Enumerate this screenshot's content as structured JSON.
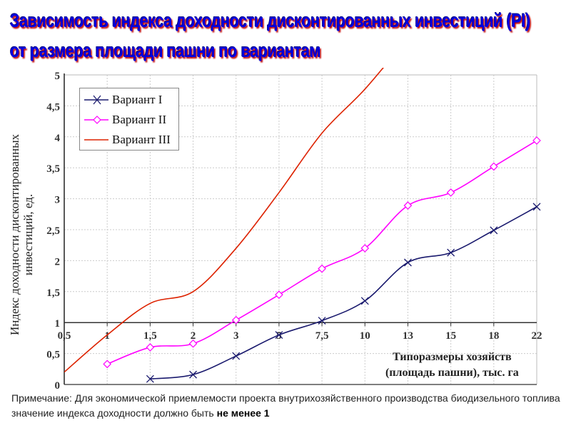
{
  "title": {
    "line1": "Зависимость индекса доходности дисконтированных инвестиций (PI)",
    "line2": "от размера площади пашни по вариантам"
  },
  "note": {
    "text": "Примечание: Для экономической приемлемости проекта внутрихозяйственного производства биодизельного топлива значение индекса доходности должно быть",
    "bold": "не менее 1"
  },
  "chart_data": {
    "type": "line",
    "title": "Зависимость индекса доходности дисконтированных инвестиций (PI) от размера площади пашни по вариантам",
    "ylabel": "Индекс доходности дисконтированных инвестиций, ед.",
    "xlabel_line1": "Типоразмеры хозяйств",
    "xlabel_line2": "(площадь пашни), тыс. га",
    "categories": [
      "0,5",
      "1",
      "1,5",
      "2",
      "3",
      "5",
      "7,5",
      "10",
      "13",
      "15",
      "18",
      "22"
    ],
    "yticks": [
      "0",
      "0,5",
      "1",
      "1,5",
      "2",
      "2,5",
      "3",
      "3,5",
      "4",
      "4,5",
      "5"
    ],
    "ylim": [
      0,
      5
    ],
    "x_axis_crosses_at": 1,
    "grid": true,
    "legend_placement": "top-left",
    "series": [
      {
        "name": "Вариант I",
        "color": "#1a1a6e",
        "marker": "x",
        "values": [
          null,
          null,
          0.09,
          0.16,
          0.46,
          0.8,
          1.03,
          1.35,
          1.97,
          2.13,
          2.49,
          2.87
        ]
      },
      {
        "name": "Вариант II",
        "color": "#ff00ff",
        "marker": "diamond",
        "values": [
          null,
          0.33,
          0.6,
          0.66,
          1.04,
          1.45,
          1.87,
          2.2,
          2.89,
          3.1,
          3.52,
          3.94
        ]
      },
      {
        "name": "Вариант III",
        "color": "#dd2200",
        "marker": "none",
        "values": [
          0.2,
          0.8,
          1.31,
          1.5,
          2.2,
          3.1,
          4.06,
          4.77,
          5.6,
          null,
          null,
          null
        ]
      }
    ]
  }
}
